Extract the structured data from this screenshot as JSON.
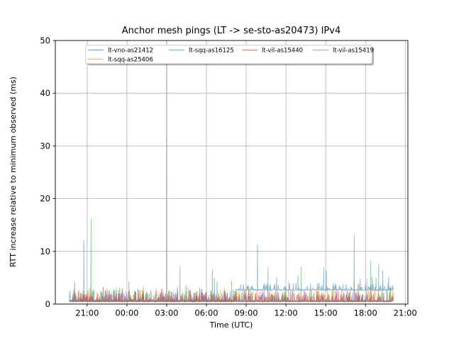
{
  "figure": {
    "background": "#ffffff",
    "plot_background": "#ffffff"
  },
  "chart_data": {
    "type": "line",
    "title": "Anchor mesh pings (LT -> se-sto-as20473) IPv4",
    "xlabel": "Time (UTC)",
    "ylabel": "RTT increase relative to minimum observed (ms)",
    "x_axis": {
      "unit": "hours_relative_to_midnight_UTC",
      "lim": [
        -5.4,
        21.2
      ],
      "ticks": [
        {
          "t": -3,
          "label": "21:00"
        },
        {
          "t": 0,
          "label": "00:00"
        },
        {
          "t": 3,
          "label": "03:00"
        },
        {
          "t": 6,
          "label": "06:00"
        },
        {
          "t": 9,
          "label": "09:00"
        },
        {
          "t": 12,
          "label": "12:00"
        },
        {
          "t": 15,
          "label": "15:00"
        },
        {
          "t": 18,
          "label": "18:00"
        },
        {
          "t": 21,
          "label": "21:00"
        }
      ]
    },
    "y_axis": {
      "lim": [
        0,
        50
      ],
      "ticks": [
        0,
        10,
        20,
        30,
        40,
        50
      ]
    },
    "grid": {
      "show": true,
      "color": "#b0b0b0"
    },
    "style": {
      "line_alpha": 0.5,
      "line_width": 1,
      "axis_color": "#000000",
      "grid_color": "#b0b0b0",
      "legend_border_color": "#cccccc",
      "legend_shadow_color": "rgba(80,80,80,0.45)"
    },
    "data_window": {
      "start": -4.35,
      "end": 20.1
    },
    "legend": {
      "location": "upper center inside plot",
      "columns": 4,
      "fill": "column-major",
      "rows": 2
    },
    "annotations": [
      "purple lt-vil-as15419 spike at 03:00 exceeds axis and is clipped at 50"
    ],
    "series": [
      {
        "name": "lt-vno-as21412",
        "color": "#1f77b4",
        "baseline": [
          {
            "from": -4.35,
            "to": 8.2,
            "base": 0.45,
            "noise_amp": 2.4
          },
          {
            "from": 8.2,
            "to": 20.1,
            "base": 2.45,
            "noise_amp": 1.3
          }
        ],
        "spikes": [
          [
            -3.95,
            4.2
          ],
          [
            -3.25,
            12.1
          ],
          [
            -2.55,
            2.6
          ],
          [
            -1.8,
            3.2
          ],
          [
            -1.0,
            2.8
          ],
          [
            -0.35,
            3.0
          ],
          [
            0.6,
            2.6
          ],
          [
            1.25,
            3.2
          ],
          [
            2.2,
            2.4
          ],
          [
            3.4,
            2.2
          ],
          [
            4.75,
            2.6
          ],
          [
            5.5,
            3.0
          ],
          [
            6.45,
            6.5
          ],
          [
            6.6,
            4.9
          ],
          [
            6.8,
            4.2
          ],
          [
            8.6,
            3.6
          ],
          [
            9.85,
            11.3
          ],
          [
            10.4,
            4.0
          ],
          [
            11.3,
            5.0
          ],
          [
            12.9,
            5.4
          ],
          [
            13.85,
            3.6
          ],
          [
            14.85,
            6.9
          ],
          [
            15.05,
            6.3
          ],
          [
            16.3,
            3.8
          ],
          [
            17.6,
            4.7
          ],
          [
            18.5,
            5.0
          ],
          [
            18.8,
            4.9
          ],
          [
            19.3,
            6.3
          ],
          [
            19.75,
            5.1
          ]
        ]
      },
      {
        "name": "lt-sqq-as25406",
        "color": "#ff7f0e",
        "baseline": [
          {
            "from": -4.35,
            "to": 20.1,
            "base": 0.3,
            "noise_amp": 2.6
          }
        ],
        "spikes": [
          [
            -3.6,
            2.8
          ],
          [
            -2.9,
            2.2
          ],
          [
            -2.0,
            2.4
          ],
          [
            -0.8,
            3.2
          ],
          [
            0.9,
            2.7
          ],
          [
            2.2,
            3.0
          ],
          [
            3.3,
            2.4
          ],
          [
            4.4,
            3.3
          ],
          [
            5.35,
            2.2
          ],
          [
            7.05,
            2.6
          ],
          [
            8.3,
            2.3
          ],
          [
            9.2,
            3.0
          ],
          [
            10.2,
            2.6
          ],
          [
            11.4,
            2.3
          ],
          [
            12.5,
            2.8
          ],
          [
            13.4,
            2.2
          ],
          [
            14.35,
            3.0
          ],
          [
            15.6,
            2.8
          ],
          [
            16.6,
            2.5
          ],
          [
            17.5,
            3.8
          ],
          [
            18.3,
            3.0
          ],
          [
            19.3,
            4.2
          ]
        ]
      },
      {
        "name": "lt-sqq-as16125",
        "color": "#2ca02c",
        "baseline": [
          {
            "from": -4.35,
            "to": 20.1,
            "base": 0.3,
            "noise_amp": 2.0
          }
        ],
        "spikes": [
          [
            -2.7,
            16.2
          ],
          [
            -1.45,
            2.6
          ],
          [
            0.15,
            4.3
          ],
          [
            1.5,
            2.2
          ],
          [
            2.6,
            2.8
          ],
          [
            4.0,
            7.1
          ],
          [
            5.1,
            2.0
          ],
          [
            6.3,
            2.5
          ],
          [
            7.9,
            4.4
          ],
          [
            9.3,
            2.6
          ],
          [
            10.65,
            7.0
          ],
          [
            12.0,
            3.0
          ],
          [
            13.15,
            7.0
          ],
          [
            14.3,
            2.4
          ],
          [
            15.5,
            2.6
          ],
          [
            17.15,
            13.1
          ],
          [
            18.4,
            8.2
          ],
          [
            19.0,
            7.6
          ],
          [
            19.9,
            3.0
          ]
        ]
      },
      {
        "name": "lt-vil-as15440",
        "color": "#d62728",
        "baseline": [
          {
            "from": -4.35,
            "to": 20.1,
            "base": 0.3,
            "noise_amp": 1.5
          }
        ],
        "spikes": [
          [
            -3.3,
            1.8
          ],
          [
            -1.6,
            2.4
          ],
          [
            0.5,
            1.7
          ],
          [
            2.9,
            2.0
          ],
          [
            4.8,
            2.5
          ],
          [
            6.4,
            1.8
          ],
          [
            8.0,
            1.6
          ],
          [
            10.9,
            1.9
          ],
          [
            13.0,
            2.1
          ],
          [
            15.2,
            1.8
          ],
          [
            16.8,
            2.2
          ],
          [
            18.6,
            2.0
          ]
        ]
      },
      {
        "name": "lt-vil-as15419",
        "color": "#9467bd",
        "baseline": [
          {
            "from": -4.35,
            "to": 20.1,
            "base": 0.35,
            "noise_amp": 2.0
          }
        ],
        "spikes": [
          [
            -1.0,
            2.2
          ],
          [
            1.8,
            2.6
          ],
          [
            3.0,
            55
          ],
          [
            4.5,
            3.6
          ],
          [
            5.9,
            2.2
          ],
          [
            7.3,
            2.4
          ],
          [
            9.0,
            2.1
          ],
          [
            10.3,
            2.4
          ],
          [
            12.2,
            4.2
          ],
          [
            13.9,
            2.6
          ],
          [
            15.8,
            2.3
          ],
          [
            17.15,
            4.4
          ],
          [
            18.1,
            4.8
          ],
          [
            19.6,
            2.5
          ]
        ]
      }
    ],
    "legend_order": [
      "lt-vno-as21412",
      "lt-sqq-as16125",
      "lt-vil-as15440",
      "lt-vil-as15419",
      "lt-sqq-as25406"
    ]
  }
}
